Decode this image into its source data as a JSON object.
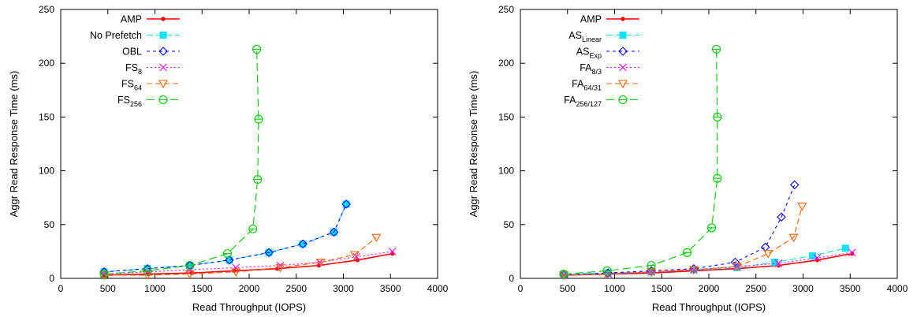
{
  "chart_data": [
    {
      "type": "line",
      "xlabel": "Read Throughput (IOPS)",
      "ylabel": "Aggr Read Response Time (ms)",
      "xlim": [
        0,
        4000
      ],
      "ylim": [
        0,
        250
      ],
      "xticks": [
        0,
        500,
        1000,
        1500,
        2000,
        2500,
        3000,
        3500,
        4000
      ],
      "yticks": [
        0,
        50,
        100,
        150,
        200,
        250
      ],
      "grid": false,
      "legend_position": "top-left",
      "series": [
        {
          "name": "AMP",
          "sub": "",
          "color": "#ff0000",
          "marker": "dot",
          "dash": "",
          "x": [
            460,
            930,
            1390,
            1840,
            2300,
            2740,
            3150,
            3520
          ],
          "y": [
            3,
            4,
            5,
            7,
            9,
            12,
            17,
            23
          ]
        },
        {
          "name": "No Prefetch",
          "sub": "",
          "color": "#00e5ff",
          "marker": "square",
          "dash": "8,4",
          "x": [
            460,
            920,
            1370,
            1790,
            2210,
            2570,
            2900,
            3030
          ],
          "y": [
            6,
            9,
            12,
            17,
            24,
            32,
            43,
            69
          ]
        },
        {
          "name": "OBL",
          "sub": "",
          "color": "#0000ff",
          "marker": "diamond",
          "dash": "4,4",
          "x": [
            460,
            920,
            1370,
            1790,
            2210,
            2570,
            2900,
            3030
          ],
          "y": [
            6,
            9,
            12,
            17,
            24,
            32,
            43,
            69
          ]
        },
        {
          "name": "FS",
          "sub": "8",
          "color": "#ff00ff",
          "marker": "x",
          "dash": "2,3",
          "x": [
            460,
            920,
            1370,
            1860,
            2330,
            2750,
            3140,
            3520
          ],
          "y": [
            4,
            6,
            8,
            10,
            12,
            15,
            20,
            25
          ]
        },
        {
          "name": "FS",
          "sub": "64",
          "color": "#ff6000",
          "marker": "triangle-down",
          "dash": "7,4",
          "x": [
            460,
            920,
            1370,
            1860,
            2330,
            2760,
            3120,
            3350
          ],
          "y": [
            3,
            3,
            4,
            6,
            10,
            15,
            22,
            38
          ]
        },
        {
          "name": "FS",
          "sub": "256",
          "color": "#00cc00",
          "marker": "circle",
          "dash": "10,5",
          "x": [
            460,
            920,
            1370,
            1770,
            2040,
            2090,
            2100,
            2080
          ],
          "y": [
            4,
            7,
            12,
            23,
            46,
            92,
            148,
            213
          ]
        }
      ]
    },
    {
      "type": "line",
      "xlabel": "Read Throughput (IOPS)",
      "ylabel": "Aggr Read Response Time (ms)",
      "xlim": [
        0,
        4000
      ],
      "ylim": [
        0,
        250
      ],
      "xticks": [
        0,
        500,
        1000,
        1500,
        2000,
        2500,
        3000,
        3500,
        4000
      ],
      "yticks": [
        0,
        50,
        100,
        150,
        200,
        250
      ],
      "grid": false,
      "legend_position": "top-left",
      "series": [
        {
          "name": "AMP",
          "sub": "",
          "color": "#ff0000",
          "marker": "dot",
          "dash": "",
          "x": [
            460,
            930,
            1390,
            1840,
            2300,
            2740,
            3150,
            3520
          ],
          "y": [
            3,
            4,
            5,
            7,
            9,
            12,
            17,
            23
          ]
        },
        {
          "name": "AS",
          "sub": "Linear",
          "color": "#00e5ff",
          "marker": "square",
          "dash": "8,4",
          "x": [
            460,
            930,
            1390,
            1840,
            2300,
            2700,
            3100,
            3450
          ],
          "y": [
            4,
            5,
            6,
            8,
            10,
            15,
            21,
            28
          ]
        },
        {
          "name": "AS",
          "sub": "Exp",
          "color": "#0000ff",
          "marker": "diamond",
          "dash": "4,4",
          "x": [
            460,
            930,
            1390,
            1840,
            2280,
            2600,
            2770,
            2910
          ],
          "y": [
            3,
            5,
            7,
            9,
            15,
            29,
            57,
            87
          ]
        },
        {
          "name": "FA",
          "sub": "8/3",
          "color": "#ff00ff",
          "marker": "x",
          "dash": "2,3",
          "x": [
            460,
            930,
            1390,
            1840,
            2300,
            2740,
            3150,
            3520
          ],
          "y": [
            3,
            4,
            6,
            8,
            11,
            14,
            19,
            24
          ]
        },
        {
          "name": "FA",
          "sub": "64/31",
          "color": "#ff6000",
          "marker": "triangle-down",
          "dash": "7,4",
          "x": [
            460,
            920,
            1390,
            1840,
            2300,
            2630,
            2900,
            2990
          ],
          "y": [
            3,
            4,
            6,
            8,
            11,
            23,
            38,
            67
          ]
        },
        {
          "name": "FA",
          "sub": "256/127",
          "color": "#00cc00",
          "marker": "circle",
          "dash": "10,5",
          "x": [
            460,
            920,
            1390,
            1770,
            2030,
            2090,
            2090,
            2080
          ],
          "y": [
            4,
            7,
            12,
            24,
            47,
            93,
            150,
            213
          ]
        }
      ]
    }
  ]
}
